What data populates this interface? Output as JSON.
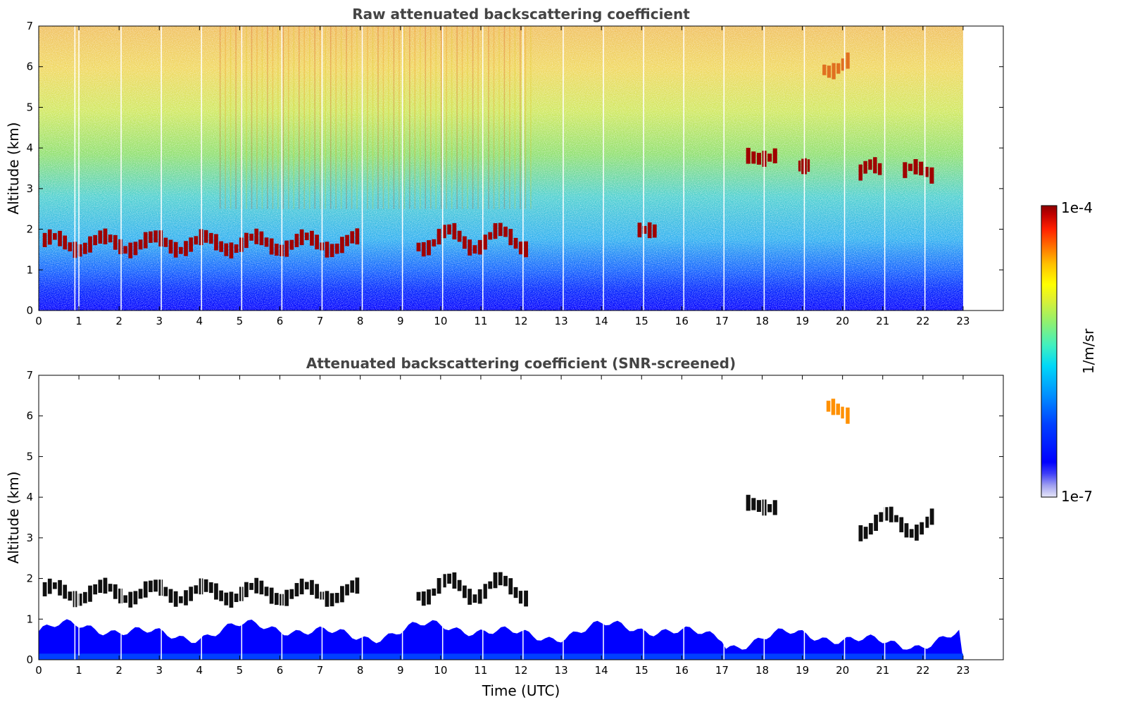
{
  "chart_data": [
    {
      "type": "heatmap",
      "title": "Raw attenuated backscattering coefficient",
      "xlabel": "",
      "ylabel": "Altitude (km)",
      "xlim": [
        0,
        24
      ],
      "ylim": [
        0,
        7
      ],
      "data_xrange": [
        0,
        23
      ],
      "xticks": [
        "0",
        "1",
        "2",
        "3",
        "4",
        "5",
        "6",
        "7",
        "8",
        "9",
        "10",
        "11",
        "12",
        "13",
        "14",
        "15",
        "16",
        "17",
        "18",
        "19",
        "20",
        "21",
        "22",
        "23"
      ],
      "yticks": [
        "0",
        "1",
        "2",
        "3",
        "4",
        "5",
        "6",
        "7"
      ],
      "description_layers": {
        "background_gradient": "blue near surface (0-0.5 km) transitioning through cyan/green (1-3 km) to yellow/orange (4-7 km)",
        "cloud_layers": [
          {
            "time_start": 0.1,
            "time_end": 8.0,
            "altitude_km": [
              1.4,
              1.9
            ],
            "intensity": "high"
          },
          {
            "time_start": 9.4,
            "time_end": 12.2,
            "altitude_km": [
              1.4,
              2.1
            ],
            "intensity": "high"
          },
          {
            "time_start": 14.9,
            "time_end": 15.4,
            "altitude_km": [
              1.9,
              2.0
            ],
            "intensity": "high"
          },
          {
            "time_start": 17.6,
            "time_end": 18.4,
            "altitude_km": [
              3.7,
              3.9
            ],
            "intensity": "high"
          },
          {
            "time_start": 18.9,
            "time_end": 19.2,
            "altitude_km": [
              3.5,
              3.8
            ],
            "intensity": "high"
          },
          {
            "time_start": 20.4,
            "time_end": 21.0,
            "altitude_km": [
              3.0,
              3.7
            ],
            "intensity": "high"
          },
          {
            "time_start": 21.5,
            "time_end": 22.3,
            "altitude_km": [
              3.2,
              3.6
            ],
            "intensity": "high"
          },
          {
            "time_start": 19.5,
            "time_end": 20.2,
            "altitude_km": [
              5.8,
              6.3
            ],
            "intensity": "medium-high"
          }
        ],
        "data_gaps_utc": [
          0.9,
          1.0,
          2.05,
          3.05,
          4.05,
          5.05,
          6.05,
          7.05,
          8.05,
          9.05,
          10.05,
          11.05,
          12.05,
          13.05,
          14.05,
          15.05,
          16.05,
          17.05,
          18.05,
          19.05,
          20.05,
          21.05,
          22.05
        ]
      }
    },
    {
      "type": "heatmap",
      "title": "Attenuated backscattering coefficient (SNR-screened)",
      "xlabel": "Time (UTC)",
      "ylabel": "Altitude (km)",
      "xlim": [
        0,
        24
      ],
      "ylim": [
        0,
        7
      ],
      "data_xrange": [
        0,
        23
      ],
      "xticks": [
        "0",
        "1",
        "2",
        "3",
        "4",
        "5",
        "6",
        "7",
        "8",
        "9",
        "10",
        "11",
        "12",
        "13",
        "14",
        "15",
        "16",
        "17",
        "18",
        "19",
        "20",
        "21",
        "22",
        "23"
      ],
      "yticks": [
        "0",
        "1",
        "2",
        "3",
        "4",
        "5",
        "6",
        "7"
      ],
      "description_layers": {
        "boundary_layer": "blue region from surface to ~0.3-0.9 km, white (screened) above",
        "cloud_layers": [
          {
            "time_start": 0.1,
            "time_end": 8.0,
            "altitude_km": [
              1.4,
              1.9
            ],
            "color": "black/dark"
          },
          {
            "time_start": 9.4,
            "time_end": 12.2,
            "altitude_km": [
              1.4,
              2.1
            ],
            "color": "black/dark"
          },
          {
            "time_start": 17.6,
            "time_end": 18.4,
            "altitude_km": [
              3.7,
              3.9
            ],
            "color": "black/dark"
          },
          {
            "time_start": 20.4,
            "time_end": 22.3,
            "altitude_km": [
              3.0,
              3.7
            ],
            "color": "black/dark"
          },
          {
            "time_start": 19.6,
            "time_end": 20.2,
            "altitude_km": [
              5.9,
              6.3
            ],
            "color": "orange"
          }
        ]
      }
    }
  ],
  "colorbar": {
    "label": "1/m/sr",
    "max_label": "1e-4",
    "min_label": "1e-7",
    "colors": [
      "#e6e6f8",
      "#a0a0f0",
      "#5a5af0",
      "#0000ff",
      "#0033ff",
      "#0066ff",
      "#0099ff",
      "#00ccff",
      "#00e5ee",
      "#40f0c0",
      "#80f080",
      "#c0f040",
      "#ffff00",
      "#ffd000",
      "#ffa000",
      "#ff6000",
      "#ff2000",
      "#d00000",
      "#8b0000"
    ]
  }
}
